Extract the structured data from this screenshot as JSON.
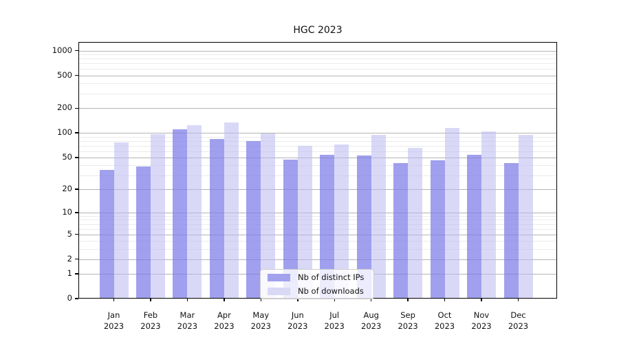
{
  "chart_data": {
    "type": "bar",
    "title": "HGC 2023",
    "y_scale": "log1p",
    "ylim": [
      0,
      1270
    ],
    "grid": true,
    "legend_position": "lower center",
    "y_ticks": [
      0,
      1,
      2,
      5,
      10,
      20,
      50,
      100,
      200,
      500,
      1000
    ],
    "y_minor_ticks": [
      3,
      4,
      6,
      7,
      8,
      9,
      30,
      40,
      60,
      70,
      80,
      90,
      300,
      400,
      600,
      700,
      800,
      900
    ],
    "categories": [
      "Jan",
      "Feb",
      "Mar",
      "Apr",
      "May",
      "Jun",
      "Jul",
      "Aug",
      "Sep",
      "Oct",
      "Nov",
      "Dec"
    ],
    "year_label": "2023",
    "series": [
      {
        "name": "Nb of distinct IPs",
        "color": "#a1a1ee",
        "fill": "rgba(124,124,232,0.72)",
        "values": [
          35,
          39,
          110,
          85,
          80,
          47,
          54,
          53,
          43,
          46,
          54,
          43
        ]
      },
      {
        "name": "Nb of downloads",
        "color": "#d9d9f5",
        "fill": "rgba(186,186,240,0.55)",
        "values": [
          76,
          96,
          124,
          135,
          98,
          70,
          72,
          94,
          66,
          115,
          104,
          95
        ]
      }
    ]
  }
}
